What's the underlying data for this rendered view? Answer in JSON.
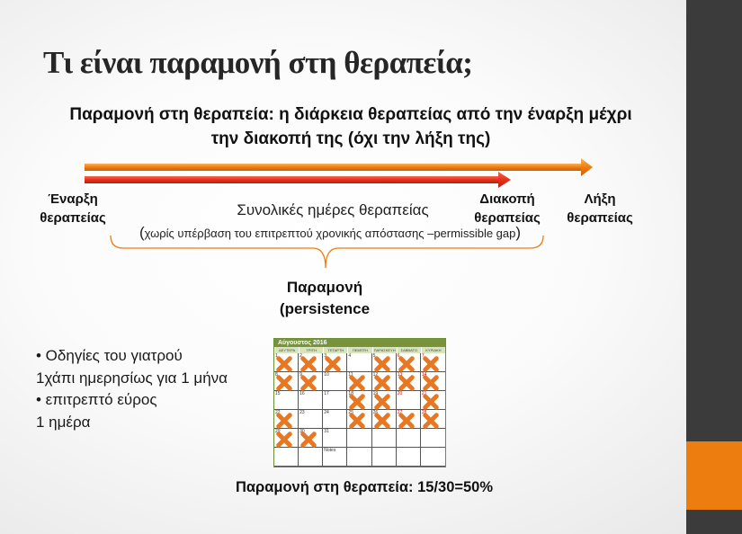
{
  "slide": {
    "title": "Τι είναι παραμονή στη θεραπεία;",
    "definition": "Παραμονή στη θεραπεία: η διάρκεια θεραπείας από την έναρξη μέχρι την διακοπή της (όχι την λήξη της)"
  },
  "timeline": {
    "start_label_line1": "Έναρξη",
    "start_label_line2": "θεραπείας",
    "stop_label_line1": "Διακοπή",
    "stop_label_line2": "θεραπείας",
    "end_label_line1": "Λήξη",
    "end_label_line2": "θεραπείας",
    "total_days": "Συνολικές ημέρες θεραπείας",
    "gap_note_open": "(",
    "gap_note_text": "χωρίς υπέρβαση του επιτρεπτού χρονικής απόστασης –permissible gap",
    "gap_note_close": ")",
    "persistence_line1": "Παραμονή",
    "persistence_line2": "(persistence",
    "colors": {
      "full_arrow": "#ee7d10",
      "persistence_arrow": "#e8301c",
      "brace": "#ee7d10"
    }
  },
  "instructions": {
    "line1": "• Οδηγίες του γιατρού",
    "line2": "1χάπι ημερησίως για 1 μήνα",
    "line3": "• επιτρεπτό εύρος",
    "line4": "1 ημέρα"
  },
  "calendar": {
    "title": "Αύγουστος 2016",
    "weekdays": [
      "ΔΕΥΤΕΡΑ",
      "ΤΡΙΤΗ",
      "ΤΕΤΑΡΤΗ",
      "ΠΕΜΠΤΗ",
      "ΠΑΡΑΣΚΕΥΗ",
      "ΣΑΒΒΑΤΟ",
      "ΚΥΡΙΑΚΗ"
    ],
    "cells": [
      {
        "day": "1",
        "taken": true
      },
      {
        "day": "2",
        "taken": true
      },
      {
        "day": "3",
        "taken": true
      },
      {
        "day": "4",
        "taken": false
      },
      {
        "day": "5",
        "taken": true
      },
      {
        "day": "6",
        "taken": true,
        "red": true
      },
      {
        "day": "7",
        "taken": true,
        "red": true
      },
      {
        "day": "8",
        "taken": true
      },
      {
        "day": "9",
        "taken": true
      },
      {
        "day": "10",
        "taken": false
      },
      {
        "day": "11",
        "taken": true
      },
      {
        "day": "12",
        "taken": true
      },
      {
        "day": "13",
        "taken": true,
        "red": true
      },
      {
        "day": "14",
        "taken": true,
        "red": true
      },
      {
        "day": "15",
        "taken": false
      },
      {
        "day": "16",
        "taken": false
      },
      {
        "day": "17",
        "taken": false
      },
      {
        "day": "18",
        "taken": true
      },
      {
        "day": "19",
        "taken": true
      },
      {
        "day": "20",
        "taken": false,
        "red": true
      },
      {
        "day": "21",
        "taken": true,
        "red": true
      },
      {
        "day": "22",
        "taken": true
      },
      {
        "day": "23",
        "taken": false
      },
      {
        "day": "24",
        "taken": false
      },
      {
        "day": "25",
        "taken": true
      },
      {
        "day": "26",
        "taken": true
      },
      {
        "day": "27",
        "taken": true,
        "red": true
      },
      {
        "day": "28",
        "taken": true,
        "red": true
      },
      {
        "day": "29",
        "taken": true
      },
      {
        "day": "30",
        "taken": true
      },
      {
        "day": "31",
        "taken": false
      },
      {
        "day": "",
        "taken": false
      },
      {
        "day": "",
        "taken": false
      },
      {
        "day": "",
        "taken": false
      },
      {
        "day": "",
        "taken": false
      },
      {
        "day": "",
        "taken": false
      },
      {
        "day": "",
        "taken": false
      },
      {
        "day": "Notes",
        "taken": false
      },
      {
        "day": "",
        "taken": false
      },
      {
        "day": "",
        "taken": false
      },
      {
        "day": "",
        "taken": false
      },
      {
        "day": "",
        "taken": false
      }
    ],
    "mark_color": "#e87722"
  },
  "summary": "Παραμονή στη θεραπεία: 15/30=50%"
}
